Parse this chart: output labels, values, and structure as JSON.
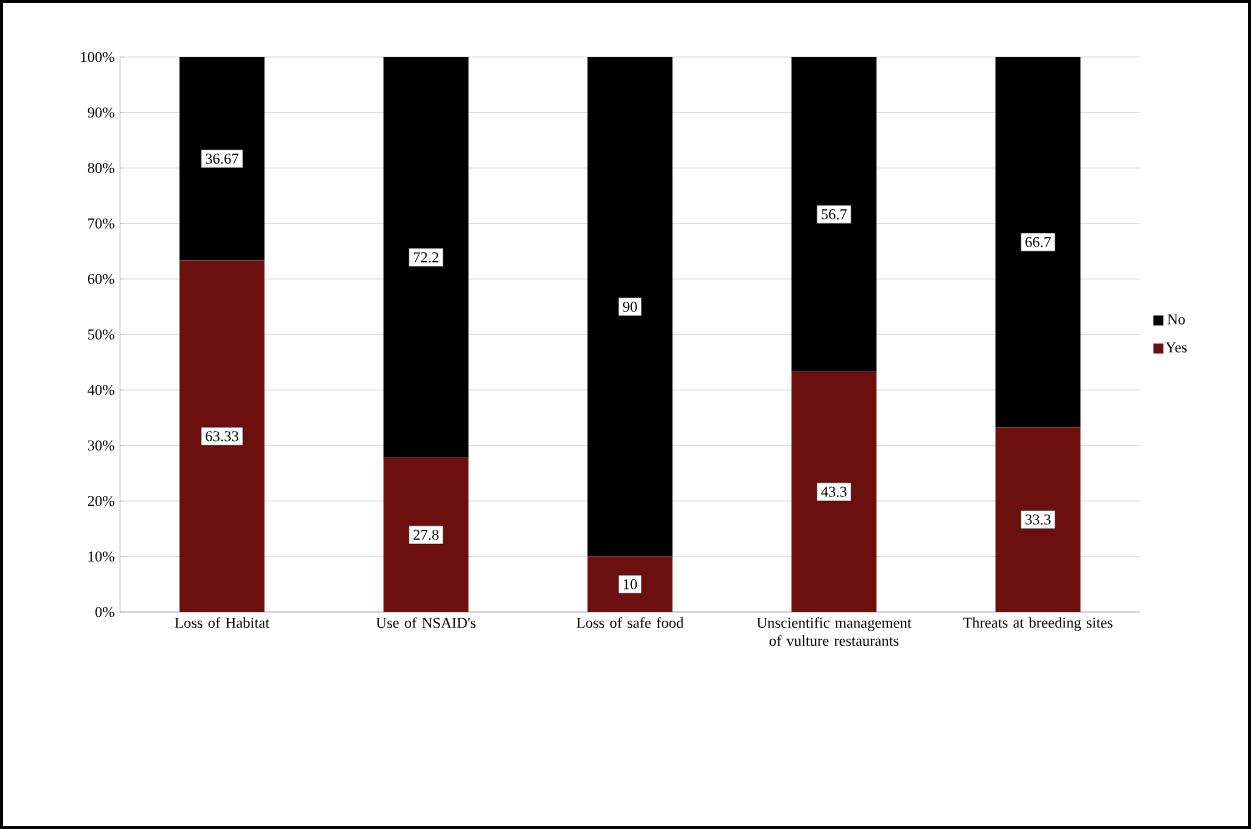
{
  "chart_data": {
    "type": "bar",
    "stacked": true,
    "categories": [
      "Loss of Habitat",
      "Use of NSAID's",
      "Loss of safe food",
      "Unscientific management of vulture restaurants",
      "Threats at breeding sites"
    ],
    "series": [
      {
        "name": "Yes",
        "color": "#6b0f0f",
        "values": [
          63.33,
          27.8,
          10,
          43.3,
          33.3
        ]
      },
      {
        "name": "No",
        "color": "#000000",
        "values": [
          36.67,
          72.2,
          90,
          56.7,
          66.7
        ]
      }
    ],
    "ylim": [
      0,
      100
    ],
    "yticks": [
      {
        "value": 0,
        "label": "0%"
      },
      {
        "value": 10,
        "label": "10%"
      },
      {
        "value": 20,
        "label": "20%"
      },
      {
        "value": 30,
        "label": "30%"
      },
      {
        "value": 40,
        "label": "40%"
      },
      {
        "value": 50,
        "label": "50%"
      },
      {
        "value": 60,
        "label": "60%"
      },
      {
        "value": 70,
        "label": "70%"
      },
      {
        "value": 80,
        "label": "80%"
      },
      {
        "value": 90,
        "label": "90%"
      },
      {
        "value": 100,
        "label": "100%"
      }
    ],
    "grid": "y",
    "legend": "right",
    "data_labels": true
  }
}
